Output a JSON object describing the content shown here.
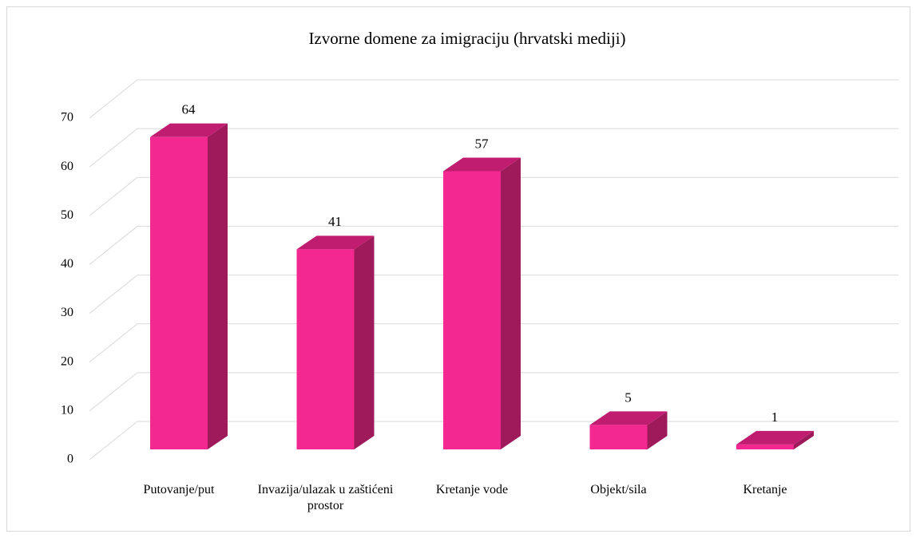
{
  "chart_data": {
    "type": "bar3d",
    "title": "Izvorne domene za imigraciju (hrvatski mediji)",
    "categories": [
      "Putovanje/put",
      "Invazija/ulazak u zaštićeni prostor",
      "Kretanje vode",
      "Objekt/sila",
      "Kretanje"
    ],
    "values": [
      64,
      41,
      57,
      5,
      1
    ],
    "color": "#f32891",
    "ylim": [
      0,
      70
    ],
    "yticks": [
      0,
      10,
      20,
      30,
      40,
      50,
      60,
      70
    ],
    "grid": true
  }
}
